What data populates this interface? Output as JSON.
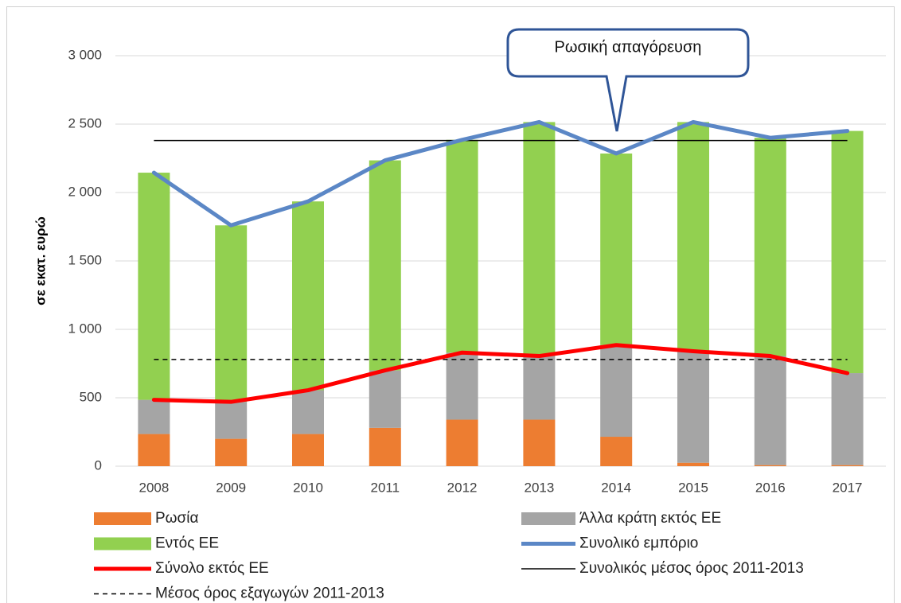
{
  "chart_data": {
    "type": "bar",
    "y_label": "σε εκατ. ευρώ",
    "annotation": "Ρωσική απαγόρευση",
    "categories": [
      "2008",
      "2009",
      "2010",
      "2011",
      "2012",
      "2013",
      "2014",
      "2015",
      "2016",
      "2017"
    ],
    "series": [
      {
        "name": "Ρωσία",
        "kind": "bar",
        "color": "#ed7d31",
        "values": [
          235,
          200,
          235,
          280,
          340,
          340,
          215,
          25,
          8,
          8
        ]
      },
      {
        "name": "Άλλα κράτη εκτός ΕΕ",
        "kind": "bar",
        "color": "#a5a5a5",
        "values": [
          250,
          270,
          320,
          420,
          490,
          465,
          670,
          815,
          797,
          672
        ]
      },
      {
        "name": "Εντός ΕΕ",
        "kind": "bar",
        "color": "#92d050",
        "values": [
          1660,
          1290,
          1380,
          1535,
          1555,
          1710,
          1400,
          1675,
          1595,
          1770
        ]
      },
      {
        "name": "Συνολικό εμπόριο",
        "kind": "line",
        "color": "#5b87c6",
        "values": [
          2145,
          1760,
          1935,
          2235,
          2385,
          2515,
          2285,
          2515,
          2400,
          2450
        ]
      },
      {
        "name": "Σύνολο εκτός ΕΕ",
        "kind": "line",
        "color": "#ff0000",
        "values": [
          485,
          470,
          555,
          700,
          830,
          805,
          885,
          840,
          805,
          680
        ]
      }
    ],
    "hlines": [
      {
        "name": "Συνολικός μέσος όρος 2011-2013",
        "value": 2380,
        "color": "#000000",
        "dashed": false
      },
      {
        "name": "Μέσος όρος εξαγωγών  2011-2013",
        "value": 780,
        "color": "#000000",
        "dashed": true
      }
    ],
    "ylim": [
      0,
      3000
    ],
    "yticks": [
      0,
      {
        "value": 500,
        "label": "500"
      },
      {
        "value": 1000,
        "label": "1 000"
      },
      {
        "value": 1500,
        "label": "1 500"
      },
      {
        "value": 2000,
        "label": "2 000"
      },
      {
        "value": 2500,
        "label": "2 500"
      },
      {
        "value": 3000,
        "label": "3 000"
      }
    ],
    "grid": true
  }
}
